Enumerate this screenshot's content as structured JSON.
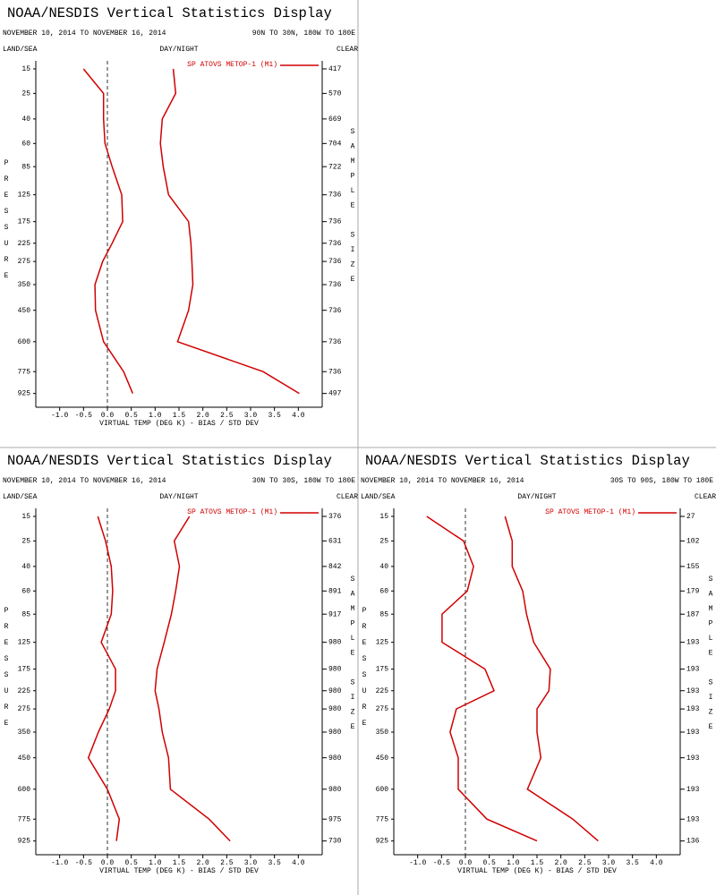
{
  "chart_data": [
    {
      "type": "line",
      "title": "NOAA/NESDIS Vertical Statistics Display",
      "date_range": "NOVEMBER 10, 2014 TO NOVEMBER 16, 2014",
      "region": "90N TO 30N, 180W TO 180E",
      "top_left_label": "LAND/SEA",
      "top_center_label": "DAY/NIGHT",
      "top_right_label": "CLEAR",
      "y_label": "PRESSURE",
      "y2_label": "SAMPLE SIZE",
      "x_label": "VIRTUAL TEMP (DEG K) - BIAS / STD DEV",
      "legend": "SP ATOVS METOP-1 (M1)",
      "categories": [
        15,
        25,
        40,
        60,
        85,
        125,
        175,
        225,
        275,
        350,
        450,
        600,
        775,
        925
      ],
      "ylim": [
        12.5,
        1030
      ],
      "sample_sizes": [
        417,
        570,
        669,
        704,
        722,
        736,
        736,
        736,
        736,
        736,
        736,
        736,
        736,
        497
      ],
      "xlim": [
        -1.5,
        4.5
      ],
      "xticks": [
        {
          "value": -1,
          "label": "-1.0"
        },
        {
          "value": -0.5,
          "label": "-0.5"
        },
        {
          "value": 0,
          "label": "0.0"
        },
        {
          "value": 0.5,
          "label": "0.5"
        },
        {
          "value": 1,
          "label": "1.0"
        },
        {
          "value": 1.5,
          "label": "1.5"
        },
        {
          "value": 2,
          "label": "2.0"
        },
        {
          "value": 2.5,
          "label": "2.5"
        },
        {
          "value": 3,
          "label": "3.0"
        },
        {
          "value": 3.5,
          "label": "3.5"
        },
        {
          "value": 4,
          "label": "4.0"
        }
      ],
      "series": [
        {
          "color": "#d00000",
          "values": [
            -0.5,
            -0.08,
            -0.08,
            -0.05,
            0.1,
            0.3,
            0.32,
            0.1,
            -0.1,
            -0.26,
            -0.25,
            -0.08,
            0.34,
            0.53
          ]
        },
        {
          "color": "#d00000",
          "values": [
            1.38,
            1.43,
            1.15,
            1.11,
            1.17,
            1.28,
            1.7,
            1.75,
            1.77,
            1.79,
            1.7,
            1.47,
            3.26,
            4.02
          ]
        }
      ]
    },
    {
      "type": "line",
      "title": "NOAA/NESDIS Vertical Statistics Display",
      "date_range": "NOVEMBER 10, 2014 TO NOVEMBER 16, 2014",
      "region": "30N TO 30S, 180W TO 180E",
      "top_left_label": "LAND/SEA",
      "top_center_label": "DAY/NIGHT",
      "top_right_label": "CLEAR",
      "y_label": "PRESSURE",
      "y2_label": "SAMPLE SIZE",
      "x_label": "VIRTUAL TEMP (DEG K) - BIAS / STD DEV",
      "legend": "SP ATOVS METOP-1 (M1)",
      "categories": [
        15,
        25,
        40,
        60,
        85,
        125,
        175,
        225,
        275,
        350,
        450,
        600,
        775,
        925
      ],
      "ylim": [
        12.5,
        1030
      ],
      "sample_sizes": [
        376,
        631,
        842,
        891,
        917,
        980,
        980,
        980,
        980,
        980,
        980,
        980,
        975,
        730
      ],
      "xlim": [
        -1.5,
        4.5
      ],
      "xticks": [
        {
          "value": -1,
          "label": "-1.0"
        },
        {
          "value": -0.5,
          "label": "-0.5"
        },
        {
          "value": 0,
          "label": "0.0"
        },
        {
          "value": 0.5,
          "label": "0.5"
        },
        {
          "value": 1,
          "label": "1.0"
        },
        {
          "value": 1.5,
          "label": "1.5"
        },
        {
          "value": 2,
          "label": "2.0"
        },
        {
          "value": 2.5,
          "label": "2.5"
        },
        {
          "value": 3,
          "label": "3.0"
        },
        {
          "value": 3.5,
          "label": "3.5"
        },
        {
          "value": 4,
          "label": "4.0"
        }
      ],
      "series": [
        {
          "color": "#d00000",
          "values": [
            -0.2,
            -0.04,
            0.08,
            0.11,
            0.08,
            -0.13,
            0.17,
            0.17,
            0.04,
            -0.19,
            -0.4,
            0,
            0.25,
            0.19
          ]
        },
        {
          "color": "#d00000",
          "values": [
            1.72,
            1.4,
            1.51,
            1.43,
            1.34,
            1.19,
            1.04,
            1.0,
            1.08,
            1.15,
            1.28,
            1.32,
            2.13,
            2.57
          ]
        }
      ]
    },
    {
      "type": "line",
      "title": "NOAA/NESDIS Vertical Statistics Display",
      "date_range": "NOVEMBER 10, 2014 TO NOVEMBER 16, 2014",
      "region": "30S TO 90S, 180W TO 180E",
      "top_left_label": "LAND/SEA",
      "top_center_label": "DAY/NIGHT",
      "top_right_label": "CLEAR",
      "y_label": "PRESSURE",
      "y2_label": "SAMPLE SIZE",
      "x_label": "VIRTUAL TEMP (DEG K) - BIAS / STD DEV",
      "legend": "SP ATOVS METOP-1 (M1)",
      "categories": [
        15,
        25,
        40,
        60,
        85,
        125,
        175,
        225,
        275,
        350,
        450,
        600,
        775,
        925
      ],
      "ylim": [
        12.5,
        1030
      ],
      "sample_sizes": [
        27,
        102,
        155,
        179,
        187,
        193,
        193,
        193,
        193,
        193,
        193,
        193,
        193,
        136
      ],
      "xlim": [
        -1.5,
        4.5
      ],
      "xticks": [
        {
          "value": -1,
          "label": "-1.0"
        },
        {
          "value": -0.5,
          "label": "-0.5"
        },
        {
          "value": 0,
          "label": "0.0"
        },
        {
          "value": 0.5,
          "label": "0.5"
        },
        {
          "value": 1,
          "label": "1.0"
        },
        {
          "value": 1.5,
          "label": "1.5"
        },
        {
          "value": 2,
          "label": "2.0"
        },
        {
          "value": 2.5,
          "label": "2.5"
        },
        {
          "value": 3,
          "label": "3.0"
        },
        {
          "value": 3.5,
          "label": "3.5"
        },
        {
          "value": 4,
          "label": "4.0"
        }
      ],
      "series": [
        {
          "color": "#d00000",
          "values": [
            -0.81,
            -0.04,
            0.17,
            0.04,
            -0.49,
            -0.49,
            0.41,
            0.6,
            -0.19,
            -0.32,
            -0.15,
            -0.15,
            0.45,
            1.5
          ]
        },
        {
          "color": "#d00000",
          "values": [
            0.83,
            0.98,
            0.98,
            1.2,
            1.28,
            1.43,
            1.78,
            1.75,
            1.5,
            1.5,
            1.58,
            1.3,
            2.25,
            2.78
          ]
        }
      ]
    }
  ]
}
